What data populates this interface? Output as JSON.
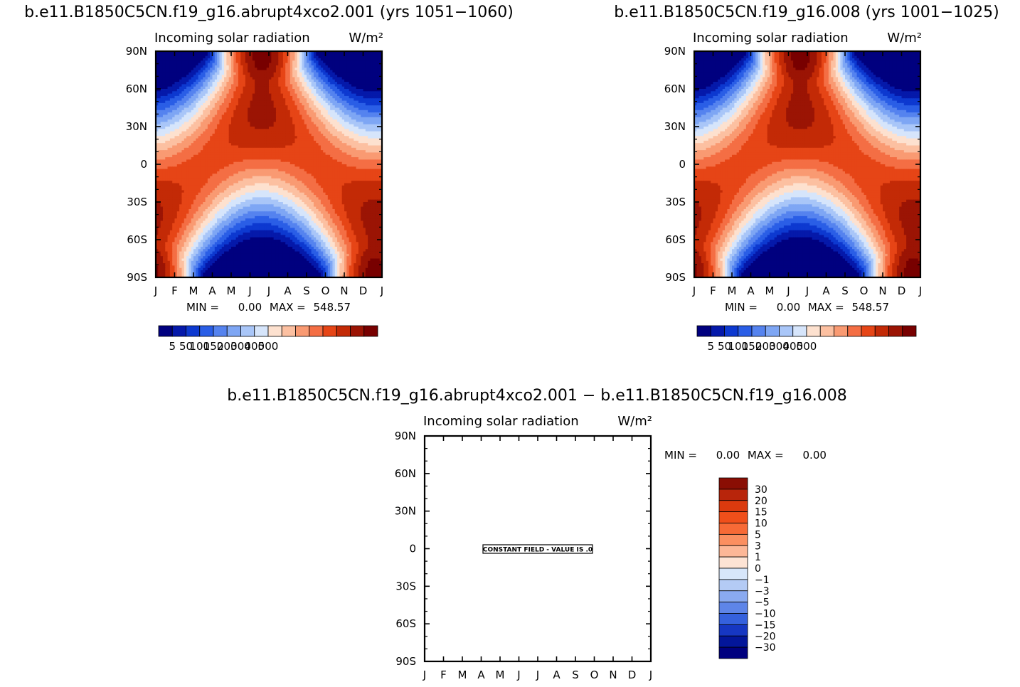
{
  "chart_data": [
    {
      "type": "heatmap",
      "panel": "top-left",
      "title": "b.e11.B1850C5CN.f19_g16.abrupt4xco2.001 (yrs 1051−1060)",
      "subtitle_left": "Incoming solar radiation",
      "units": "W/m²",
      "x_ticks": [
        "J",
        "F",
        "M",
        "A",
        "M",
        "J",
        "J",
        "A",
        "S",
        "O",
        "N",
        "D",
        "J"
      ],
      "y_ticks": [
        "90N",
        "60N",
        "30N",
        "0",
        "30S",
        "60S",
        "90S"
      ],
      "ylim": [
        -90,
        90
      ],
      "stats": {
        "min_label": "MIN =",
        "min_value": "0.00",
        "max_label": "MAX =",
        "max_value": "548.57",
        "min": 0.0,
        "max": 548.57
      },
      "levels": [
        5,
        50,
        100,
        150,
        200,
        300,
        400,
        500
      ],
      "colorbar_labels": [
        "5",
        "50",
        "100",
        "150",
        "200",
        "300",
        "400",
        "500"
      ],
      "colorbar_colors": [
        "#00007f",
        "#0519aa",
        "#0d39d0",
        "#2a5ee6",
        "#5583ef",
        "#7ea6f4",
        "#a9c6f8",
        "#d6e5fb",
        "#fde1cf",
        "#fcc0a1",
        "#f99a72",
        "#f46e44",
        "#e64516",
        "#c32a06",
        "#9b1404",
        "#780000"
      ]
    },
    {
      "type": "heatmap",
      "panel": "top-right",
      "title": "b.e11.B1850C5CN.f19_g16.008 (yrs 1001−1025)",
      "subtitle_left": "Incoming solar radiation",
      "units": "W/m²",
      "x_ticks": [
        "J",
        "F",
        "M",
        "A",
        "M",
        "J",
        "J",
        "A",
        "S",
        "O",
        "N",
        "D",
        "J"
      ],
      "y_ticks": [
        "90N",
        "60N",
        "30N",
        "0",
        "30S",
        "60S",
        "90S"
      ],
      "ylim": [
        -90,
        90
      ],
      "stats": {
        "min_label": "MIN =",
        "min_value": "0.00",
        "max_label": "MAX =",
        "max_value": "548.57",
        "min": 0.0,
        "max": 548.57
      },
      "levels": [
        5,
        50,
        100,
        150,
        200,
        300,
        400,
        500
      ],
      "colorbar_labels": [
        "5",
        "50",
        "100",
        "150",
        "200",
        "300",
        "400",
        "500"
      ],
      "colorbar_colors": [
        "#00007f",
        "#0519aa",
        "#0d39d0",
        "#2a5ee6",
        "#5583ef",
        "#7ea6f4",
        "#a9c6f8",
        "#d6e5fb",
        "#fde1cf",
        "#fcc0a1",
        "#f99a72",
        "#f46e44",
        "#e64516",
        "#c32a06",
        "#9b1404",
        "#780000"
      ]
    },
    {
      "type": "heatmap",
      "panel": "bottom-difference",
      "title": "b.e11.B1850C5CN.f19_g16.abrupt4xco2.001 − b.e11.B1850C5CN.f19_g16.008",
      "subtitle_left": "Incoming solar radiation",
      "units": "W/m²",
      "x_ticks": [
        "J",
        "F",
        "M",
        "A",
        "M",
        "J",
        "J",
        "A",
        "S",
        "O",
        "N",
        "D",
        "J"
      ],
      "y_ticks": [
        "90N",
        "60N",
        "30N",
        "0",
        "30S",
        "60S",
        "90S"
      ],
      "ylim": [
        -90,
        90
      ],
      "stats": {
        "min_label": "MIN =",
        "min_value": "0.00",
        "max_label": "MAX =",
        "max_value": "0.00",
        "min": 0.0,
        "max": 0.0
      },
      "constant_field_text": "CONSTANT FIELD - VALUE IS .0",
      "levels": [
        30,
        20,
        15,
        10,
        5,
        3,
        1,
        0,
        -1,
        -3,
        -5,
        -10,
        -15,
        -20,
        -30
      ],
      "colorbar_labels": [
        "30",
        "20",
        "15",
        "10",
        "5",
        "3",
        "1",
        "0",
        "−1",
        "−3",
        "−5",
        "−10",
        "−15",
        "−20",
        "−30"
      ],
      "colorbar_colors": [
        "#8a0e04",
        "#b8250b",
        "#db3a0e",
        "#f04f1a",
        "#f76a36",
        "#fb8f60",
        "#fcb797",
        "#fde3d4",
        "#d7e6fa",
        "#b4cbf5",
        "#8aaaf0",
        "#5e85e8",
        "#3561dd",
        "#1637c2",
        "#03169a",
        "#00007f"
      ]
    }
  ]
}
